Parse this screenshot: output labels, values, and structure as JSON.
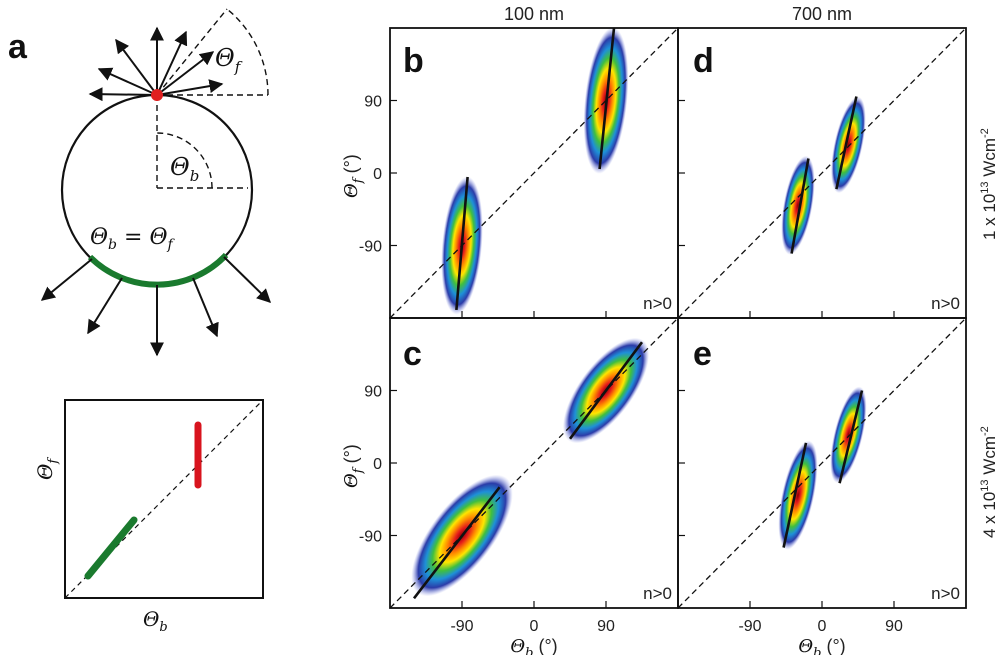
{
  "figure": {
    "panel_labels": {
      "a": "a",
      "b": "b",
      "c": "c",
      "d": "d",
      "e": "e"
    },
    "column_headers": [
      "100 nm",
      "700 nm"
    ],
    "row_labels": [
      "1 x 10",
      "4 x 10"
    ],
    "row_label_exponent": "13",
    "row_label_unit": "Wcm",
    "row_label_unit_exponent": "-2",
    "schematic": {
      "theta_f": "Θ",
      "theta_f_sub": "f",
      "theta_b": "Θ",
      "theta_b_sub": "b",
      "equality_label": "Θb = Θf",
      "eq_theta": "Θ",
      "eq_b": "b",
      "eq_equals": " = ",
      "eq_f": "f",
      "colors": {
        "emission_point": "#e02020",
        "arc": "#1a7a2e",
        "red_bar": "#d8141e",
        "green_bar": "#1a7a2e"
      }
    },
    "inset": {
      "xlabel": "Θb",
      "ylabel": "Θf"
    },
    "ylabel_main": "Θf (°)",
    "xlabel_main": "Θb (°)",
    "axis_theta": "Θ",
    "axis_sub_f": "f",
    "axis_sub_b": "b",
    "axis_unit": " (°)",
    "yticks": [
      "90",
      "0",
      "-90"
    ],
    "xticks_left": [
      "-90",
      "0",
      "90"
    ],
    "xticks_right": [
      "-90",
      "0",
      "90"
    ],
    "annotation": "n>0"
  },
  "chart_data": [
    {
      "panel": "b",
      "type": "scatter",
      "column": "100 nm",
      "row": "1 x 10^13 Wcm^-2",
      "xlim": [
        -180,
        180
      ],
      "ylim": [
        -180,
        180
      ],
      "clusters": [
        {
          "center_x": -90,
          "center_y": -90,
          "fit_line": [
            [
              -97,
              -170
            ],
            [
              -83,
              -5
            ]
          ]
        },
        {
          "center_x": 90,
          "center_y": 90,
          "fit_line": [
            [
              82,
              5
            ],
            [
              100,
              180
            ]
          ]
        }
      ],
      "diagonal": true,
      "annotation": "n>0"
    },
    {
      "panel": "c",
      "type": "scatter",
      "column": "100 nm",
      "row": "4 x 10^13 Wcm^-2",
      "xlim": [
        -180,
        180
      ],
      "ylim": [
        -180,
        180
      ],
      "clusters": [
        {
          "center_x": -90,
          "center_y": -90,
          "fit_line": [
            [
              -150,
              -168
            ],
            [
              -43,
              -30
            ]
          ]
        },
        {
          "center_x": 90,
          "center_y": 90,
          "fit_line": [
            [
              45,
              30
            ],
            [
              135,
              150
            ]
          ]
        }
      ],
      "diagonal": true,
      "annotation": "n>0"
    },
    {
      "panel": "d",
      "type": "scatter",
      "column": "700 nm",
      "row": "1 x 10^13 Wcm^-2",
      "xlim": [
        -180,
        180
      ],
      "ylim": [
        -180,
        180
      ],
      "clusters": [
        {
          "center_x": -30,
          "center_y": -40,
          "fit_line": [
            [
              -38,
              -100
            ],
            [
              -17,
              18
            ]
          ]
        },
        {
          "center_x": 33,
          "center_y": 35,
          "fit_line": [
            [
              18,
              -20
            ],
            [
              43,
              95
            ]
          ]
        }
      ],
      "diagonal": true,
      "annotation": "n>0"
    },
    {
      "panel": "e",
      "type": "scatter",
      "column": "700 nm",
      "row": "4 x 10^13 Wcm^-2",
      "xlim": [
        -180,
        180
      ],
      "ylim": [
        -180,
        180
      ],
      "clusters": [
        {
          "center_x": -30,
          "center_y": -40,
          "fit_line": [
            [
              -48,
              -105
            ],
            [
              -20,
              25
            ]
          ]
        },
        {
          "center_x": 33,
          "center_y": 35,
          "fit_line": [
            [
              22,
              -25
            ],
            [
              50,
              90
            ]
          ]
        }
      ],
      "diagonal": true,
      "annotation": "n>0"
    }
  ]
}
